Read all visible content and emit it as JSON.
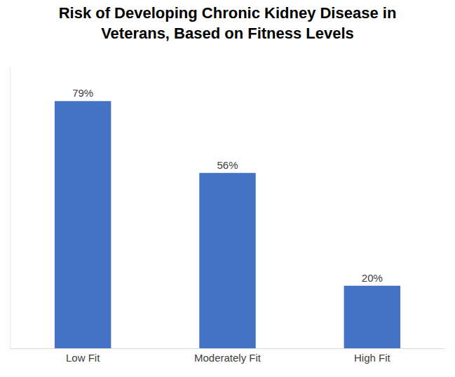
{
  "chart_data": {
    "type": "bar",
    "title": [
      "Risk of Developing Chronic Kidney Disease in",
      "Veterans, Based on Fitness Levels"
    ],
    "categories": [
      "Low Fit",
      "Moderately Fit",
      "High Fit"
    ],
    "values": [
      79,
      56,
      20
    ],
    "value_labels": [
      "79%",
      "56%",
      "20%"
    ],
    "color": "#4472c4",
    "ylim": [
      0,
      90
    ],
    "grid": false,
    "data_labels": true,
    "tick_labels": "x"
  }
}
